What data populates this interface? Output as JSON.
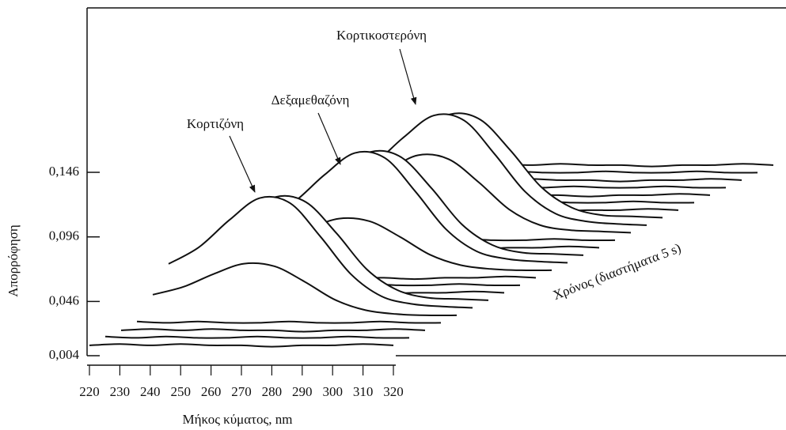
{
  "chart_data": {
    "type": "waterfall",
    "xlabel": "Μήκος κύματος, nm",
    "ylabel": "Απορρόφηση",
    "zlabel": "Χρόνος (διαστήματα 5 s)",
    "annotations": [
      "Κορτιζόνη",
      "Δεξαμεθαζόνη",
      "Κορτικοστερόνη"
    ],
    "color": "#111111",
    "x": [
      220,
      230,
      240,
      250,
      260,
      270,
      280,
      290,
      300,
      310,
      320
    ],
    "xlim": [
      220,
      320
    ],
    "xticks": [
      220,
      230,
      240,
      250,
      260,
      270,
      280,
      290,
      300,
      310,
      320
    ],
    "ylim": [
      0.004,
      0.146
    ],
    "yticks": [
      {
        "value": 0.004,
        "label": "0,004"
      },
      {
        "value": 0.046,
        "label": "0,046"
      },
      {
        "value": 0.096,
        "label": "0,096"
      },
      {
        "value": 0.146,
        "label": "0,146"
      }
    ],
    "series": [
      {
        "values": [
          0.012,
          0.013,
          0.012,
          0.013,
          0.012,
          0.012,
          0.011,
          0.012,
          0.012,
          0.013,
          0.012
        ]
      },
      {
        "values": [
          0.013,
          0.012,
          0.013,
          0.012,
          0.012,
          0.013,
          0.012,
          0.012,
          0.013,
          0.012,
          0.012
        ]
      },
      {
        "values": [
          0.012,
          0.013,
          0.012,
          0.013,
          0.012,
          0.012,
          0.011,
          0.012,
          0.012,
          0.013,
          0.012
        ]
      },
      {
        "values": [
          0.013,
          0.012,
          0.013,
          0.012,
          0.012,
          0.013,
          0.012,
          0.012,
          0.013,
          0.012,
          0.012
        ]
      },
      {
        "values": [
          0.028,
          0.034,
          0.044,
          0.052,
          0.05,
          0.038,
          0.024,
          0.016,
          0.013,
          0.012,
          0.012
        ]
      },
      {
        "values": [
          0.046,
          0.059,
          0.08,
          0.097,
          0.093,
          0.067,
          0.038,
          0.021,
          0.015,
          0.013,
          0.012
        ]
      },
      {
        "values": [
          0.044,
          0.056,
          0.076,
          0.092,
          0.088,
          0.064,
          0.036,
          0.02,
          0.014,
          0.013,
          0.012
        ]
      },
      {
        "values": [
          0.012,
          0.013,
          0.012,
          0.013,
          0.012,
          0.012,
          0.011,
          0.012,
          0.012,
          0.013,
          0.012
        ]
      },
      {
        "values": [
          0.013,
          0.012,
          0.013,
          0.012,
          0.012,
          0.013,
          0.012,
          0.012,
          0.013,
          0.012,
          0.012
        ]
      },
      {
        "values": [
          0.012,
          0.013,
          0.012,
          0.013,
          0.012,
          0.012,
          0.011,
          0.012,
          0.012,
          0.013,
          0.012
        ]
      },
      {
        "values": [
          0.028,
          0.034,
          0.044,
          0.052,
          0.05,
          0.038,
          0.024,
          0.016,
          0.013,
          0.012,
          0.012
        ]
      },
      {
        "values": [
          0.046,
          0.059,
          0.08,
          0.097,
          0.093,
          0.067,
          0.038,
          0.021,
          0.015,
          0.013,
          0.012
        ]
      },
      {
        "values": [
          0.044,
          0.056,
          0.076,
          0.092,
          0.088,
          0.064,
          0.036,
          0.02,
          0.014,
          0.013,
          0.012
        ]
      },
      {
        "values": [
          0.012,
          0.013,
          0.012,
          0.013,
          0.012,
          0.012,
          0.011,
          0.012,
          0.012,
          0.013,
          0.012
        ]
      },
      {
        "values": [
          0.013,
          0.012,
          0.013,
          0.012,
          0.012,
          0.013,
          0.012,
          0.012,
          0.013,
          0.012,
          0.012
        ]
      },
      {
        "values": [
          0.036,
          0.045,
          0.06,
          0.072,
          0.069,
          0.051,
          0.03,
          0.018,
          0.014,
          0.013,
          0.012
        ]
      },
      {
        "values": [
          0.046,
          0.059,
          0.08,
          0.097,
          0.093,
          0.067,
          0.038,
          0.021,
          0.015,
          0.013,
          0.012
        ]
      },
      {
        "values": [
          0.044,
          0.056,
          0.076,
          0.092,
          0.088,
          0.064,
          0.036,
          0.02,
          0.014,
          0.013,
          0.012
        ]
      },
      {
        "values": [
          0.012,
          0.013,
          0.012,
          0.013,
          0.012,
          0.012,
          0.011,
          0.012,
          0.012,
          0.013,
          0.012
        ]
      },
      {
        "values": [
          0.013,
          0.012,
          0.013,
          0.012,
          0.012,
          0.013,
          0.012,
          0.012,
          0.013,
          0.012,
          0.012
        ]
      },
      {
        "values": [
          0.012,
          0.013,
          0.012,
          0.013,
          0.012,
          0.012,
          0.011,
          0.012,
          0.012,
          0.013,
          0.012
        ]
      },
      {
        "values": [
          0.013,
          0.012,
          0.013,
          0.012,
          0.012,
          0.013,
          0.012,
          0.012,
          0.013,
          0.012,
          0.012
        ]
      },
      {
        "values": [
          0.012,
          0.013,
          0.012,
          0.013,
          0.012,
          0.012,
          0.011,
          0.012,
          0.012,
          0.013,
          0.012
        ]
      },
      {
        "values": [
          0.013,
          0.012,
          0.013,
          0.012,
          0.012,
          0.013,
          0.012,
          0.012,
          0.013,
          0.012,
          0.012
        ]
      },
      {
        "values": [
          0.012,
          0.013,
          0.012,
          0.013,
          0.012,
          0.012,
          0.011,
          0.012,
          0.012,
          0.013,
          0.012
        ]
      }
    ]
  }
}
